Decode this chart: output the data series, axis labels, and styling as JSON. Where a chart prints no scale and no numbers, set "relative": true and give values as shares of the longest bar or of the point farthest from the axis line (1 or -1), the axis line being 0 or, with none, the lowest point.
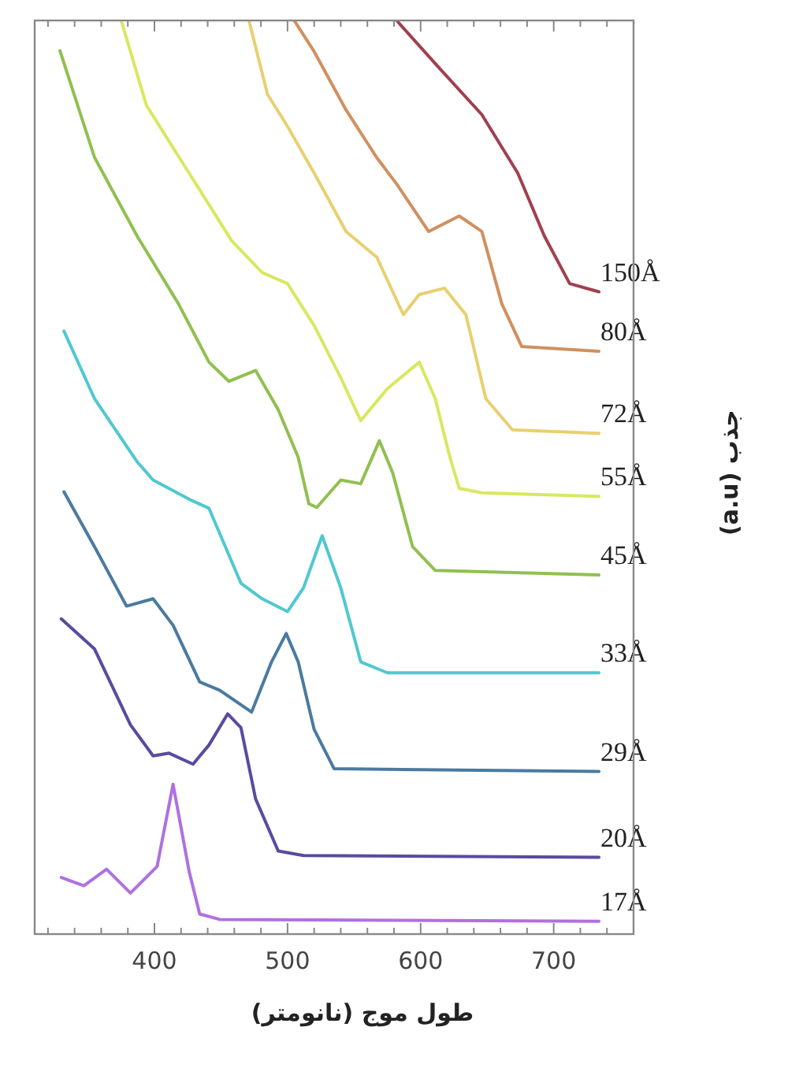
{
  "chart_data": {
    "type": "line",
    "xlabel": "طول موج (نانومتر)",
    "ylabel": "جذب (a.u)",
    "relative": true,
    "xlim": [
      310,
      760
    ],
    "xticks": [
      400,
      500,
      600,
      700
    ],
    "marker": "none",
    "line_style": "solid",
    "series": [
      {
        "name": "17Å",
        "color": "#b070e0",
        "x": [
          330,
          347,
          364,
          382,
          402,
          414,
          426,
          434,
          449,
          734
        ],
        "values": [
          0.062,
          0.053,
          0.071,
          0.045,
          0.074,
          0.164,
          0.069,
          0.022,
          0.016,
          0.014
        ]
      },
      {
        "name": "20Å",
        "color": "#5a4aa0",
        "x": [
          330,
          355,
          382,
          399,
          411,
          429,
          441,
          455,
          465,
          476,
          493,
          512,
          734
        ],
        "values": [
          0.345,
          0.312,
          0.229,
          0.195,
          0.198,
          0.186,
          0.207,
          0.241,
          0.226,
          0.148,
          0.091,
          0.086,
          0.084
        ]
      },
      {
        "name": "29Å",
        "color": "#4a7aa0",
        "x": [
          332,
          355,
          379,
          399,
          414,
          434,
          449,
          473,
          488,
          499,
          508,
          520,
          535,
          734
        ],
        "values": [
          0.484,
          0.424,
          0.359,
          0.367,
          0.338,
          0.276,
          0.267,
          0.243,
          0.298,
          0.329,
          0.298,
          0.224,
          0.181,
          0.178
        ]
      },
      {
        "name": "33Å",
        "color": "#50c8d0",
        "x": [
          332,
          355,
          387,
          399,
          426,
          441,
          465,
          481,
          500,
          512,
          526,
          540,
          555,
          575,
          734
        ],
        "values": [
          0.66,
          0.586,
          0.517,
          0.497,
          0.476,
          0.466,
          0.384,
          0.367,
          0.353,
          0.379,
          0.436,
          0.379,
          0.298,
          0.286,
          0.286
        ]
      },
      {
        "name": "45Å",
        "color": "#90c050",
        "x": [
          329,
          355,
          387,
          418,
          441,
          456,
          476,
          493,
          508,
          516,
          522,
          540,
          555,
          569,
          579,
          594,
          611,
          734
        ],
        "values": [
          0.967,
          0.85,
          0.764,
          0.69,
          0.626,
          0.605,
          0.617,
          0.574,
          0.522,
          0.471,
          0.467,
          0.497,
          0.493,
          0.54,
          0.505,
          0.424,
          0.398,
          0.393
        ]
      },
      {
        "name": "55Å",
        "color": "#d8e860",
        "x": [
          375,
          394,
          426,
          458,
          481,
          500,
          520,
          540,
          555,
          575,
          599,
          611,
          622,
          629,
          646,
          734
        ],
        "values": [
          1.0,
          0.907,
          0.833,
          0.759,
          0.724,
          0.712,
          0.666,
          0.609,
          0.562,
          0.597,
          0.626,
          0.586,
          0.522,
          0.488,
          0.483,
          0.479
        ]
      },
      {
        "name": "72Å",
        "color": "#e8d070",
        "x": [
          471,
          485,
          500,
          520,
          544,
          567,
          587,
          599,
          618,
          634,
          649,
          669,
          734
        ],
        "values": [
          1.0,
          0.919,
          0.884,
          0.833,
          0.769,
          0.741,
          0.678,
          0.7,
          0.707,
          0.678,
          0.586,
          0.552,
          0.548
        ]
      },
      {
        "name": "80Å",
        "color": "#d09060",
        "x": [
          505,
          520,
          544,
          567,
          582,
          606,
          629,
          646,
          661,
          676,
          734
        ],
        "values": [
          1.0,
          0.966,
          0.902,
          0.85,
          0.821,
          0.769,
          0.786,
          0.769,
          0.69,
          0.643,
          0.638
        ]
      },
      {
        "name": "150Å",
        "color": "#a04050",
        "x": [
          582,
          614,
          646,
          673,
          693,
          712,
          734
        ],
        "values": [
          1.0,
          0.948,
          0.897,
          0.833,
          0.764,
          0.712,
          0.703
        ]
      }
    ]
  }
}
